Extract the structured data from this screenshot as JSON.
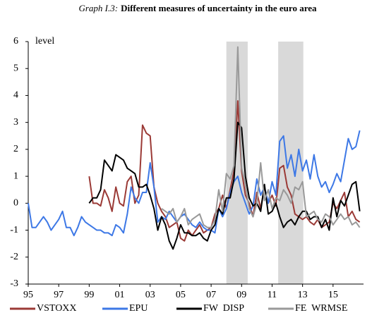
{
  "chart_data": {
    "type": "line",
    "title_label": "Graph I.3:",
    "title": "Different measures of uncertainty in the euro area",
    "y_label": "level",
    "x": [
      1995,
      1995.25,
      1995.5,
      1995.75,
      1996,
      1996.25,
      1996.5,
      1996.75,
      1997,
      1997.25,
      1997.5,
      1997.75,
      1998,
      1998.25,
      1998.5,
      1998.75,
      1999,
      1999.25,
      1999.5,
      1999.75,
      2000,
      2000.25,
      2000.5,
      2000.75,
      2001,
      2001.25,
      2001.5,
      2001.75,
      2002,
      2002.25,
      2002.5,
      2002.75,
      2003,
      2003.25,
      2003.5,
      2003.75,
      2004,
      2004.25,
      2004.5,
      2004.75,
      2005,
      2005.25,
      2005.5,
      2005.75,
      2006,
      2006.25,
      2006.5,
      2006.75,
      2007,
      2007.25,
      2007.5,
      2007.75,
      2008,
      2008.25,
      2008.5,
      2008.75,
      2009,
      2009.25,
      2009.5,
      2009.75,
      2010,
      2010.25,
      2010.5,
      2010.75,
      2011,
      2011.25,
      2011.5,
      2011.75,
      2012,
      2012.25,
      2012.5,
      2012.75,
      2013,
      2013.25,
      2013.5,
      2013.75,
      2014,
      2014.25,
      2014.5,
      2014.75,
      2015,
      2015.25,
      2015.5,
      2015.75,
      2016,
      2016.25,
      2016.5,
      2016.75
    ],
    "series": [
      {
        "name": "VSTOXX",
        "color": "#9b3a36",
        "values": [
          null,
          null,
          null,
          null,
          null,
          null,
          null,
          null,
          null,
          null,
          null,
          null,
          null,
          null,
          null,
          null,
          1.0,
          0.0,
          0.0,
          -0.1,
          0.5,
          0.2,
          -0.3,
          0.6,
          0.0,
          -0.1,
          0.8,
          1.0,
          0.0,
          0.3,
          2.9,
          2.6,
          2.5,
          0.6,
          0.0,
          -0.3,
          -0.5,
          -0.9,
          -0.8,
          -0.7,
          -1.3,
          -1.4,
          -1.0,
          -1.2,
          -1.0,
          -0.8,
          -1.1,
          -1.0,
          -0.9,
          -0.4,
          -0.2,
          0.3,
          -0.2,
          0.5,
          1.2,
          3.8,
          1.2,
          0.3,
          0.0,
          -0.5,
          0.4,
          -0.2,
          0.6,
          0.0,
          0.3,
          -0.1,
          1.3,
          1.4,
          0.6,
          0.3,
          -0.4,
          -0.5,
          -0.6,
          -0.5,
          -0.7,
          -0.8,
          -0.6,
          -0.9,
          -0.8,
          -0.7,
          0.0,
          -0.2,
          0.1,
          0.4,
          -0.5,
          -0.3,
          -0.6,
          -0.7
        ]
      },
      {
        "name": "EPU",
        "color": "#3d78e6",
        "values": [
          0,
          -0.9,
          -0.9,
          -0.7,
          -0.5,
          -0.7,
          -1.0,
          -0.8,
          -0.6,
          -0.3,
          -0.9,
          -0.9,
          -1.2,
          -0.9,
          -0.5,
          -0.7,
          -0.8,
          -0.9,
          -1.0,
          -1.0,
          -1.1,
          -1.1,
          -1.2,
          -0.8,
          -0.9,
          -1.1,
          -0.4,
          0.6,
          0.2,
          0.0,
          0.4,
          0.4,
          1.5,
          0.6,
          -0.7,
          -0.5,
          -0.6,
          -0.3,
          -0.5,
          -0.7,
          -0.5,
          -0.4,
          -0.6,
          -0.8,
          -0.9,
          -0.7,
          -0.9,
          -1.0,
          -1.0,
          -1.1,
          -0.2,
          -0.5,
          -0.2,
          0.4,
          0.8,
          1.0,
          0.4,
          0.0,
          -0.4,
          -0.1,
          0.9,
          0.3,
          0.6,
          0.0,
          0.8,
          0.3,
          2.3,
          2.5,
          1.3,
          1.8,
          1.0,
          2.0,
          1.2,
          1.6,
          0.9,
          1.8,
          1.0,
          0.6,
          0.8,
          0.4,
          0.7,
          1.1,
          0.8,
          1.6,
          2.4,
          2.0,
          2.1,
          2.7
        ]
      },
      {
        "name": "FW  DISP",
        "color": "#000000",
        "values": [
          null,
          null,
          null,
          null,
          null,
          null,
          null,
          null,
          null,
          null,
          null,
          null,
          null,
          null,
          null,
          null,
          0.0,
          0.2,
          0.2,
          0.5,
          1.6,
          1.4,
          1.2,
          1.8,
          1.7,
          1.6,
          1.3,
          1.2,
          1.1,
          0.6,
          0.6,
          0.7,
          0.3,
          -0.2,
          -1.0,
          -0.5,
          -0.8,
          -1.4,
          -1.7,
          -1.3,
          -0.8,
          -1.1,
          -1.1,
          -1.2,
          -1.2,
          -1.1,
          -1.3,
          -1.4,
          -1.0,
          -0.8,
          -0.2,
          -0.4,
          0.2,
          0.2,
          0.9,
          3.0,
          2.8,
          1.0,
          0.2,
          -0.1,
          0.0,
          -0.3,
          0.7,
          -0.4,
          -0.3,
          0.0,
          -0.5,
          -0.9,
          -0.7,
          -0.6,
          -0.8,
          -0.5,
          -0.3,
          -0.3,
          -0.6,
          -0.5,
          -0.5,
          -0.9,
          -0.6,
          -1.0,
          0.2,
          -0.5,
          0.1,
          -0.1,
          0.3,
          0.7,
          0.8,
          -0.3
        ]
      },
      {
        "name": "FE  WRMSE",
        "color": "#999999",
        "values": [
          null,
          null,
          null,
          null,
          null,
          null,
          null,
          null,
          null,
          null,
          null,
          null,
          null,
          null,
          null,
          null,
          null,
          null,
          null,
          null,
          null,
          null,
          null,
          null,
          null,
          null,
          null,
          null,
          null,
          null,
          null,
          null,
          null,
          null,
          null,
          -0.2,
          -0.3,
          -0.4,
          -0.2,
          -0.7,
          -0.5,
          -0.2,
          -0.8,
          -0.6,
          -0.5,
          -0.4,
          -0.8,
          -0.9,
          -0.9,
          -0.6,
          0.5,
          -0.3,
          1.1,
          0.9,
          1.4,
          5.8,
          1.3,
          0.7,
          -0.2,
          -0.5,
          0.0,
          1.5,
          0.1,
          0.5,
          -0.2,
          0.2,
          0.1,
          0.5,
          0.3,
          0.0,
          0.6,
          0.5,
          0.8,
          -0.5,
          -0.4,
          -0.3,
          -0.6,
          -0.7,
          -0.4,
          -0.5,
          -0.8,
          -0.6,
          -0.4,
          -0.6,
          -0.5,
          -0.8,
          -0.7,
          -0.9
        ]
      }
    ],
    "shaded": [
      {
        "start": 2008,
        "end": 2009.4
      },
      {
        "start": 2011.4,
        "end": 2013.05
      }
    ],
    "shade_color": "#d9d9d9",
    "xlim": [
      1995,
      2017
    ],
    "xticks": [
      {
        "value": 1995,
        "label": "95"
      },
      {
        "value": 1997,
        "label": "97"
      },
      {
        "value": 1999,
        "label": "99"
      },
      {
        "value": 2001,
        "label": "01"
      },
      {
        "value": 2003,
        "label": "03"
      },
      {
        "value": 2005,
        "label": "05"
      },
      {
        "value": 2007,
        "label": "07"
      },
      {
        "value": 2009,
        "label": "09"
      },
      {
        "value": 2011,
        "label": "11"
      },
      {
        "value": 2013,
        "label": "13"
      },
      {
        "value": 2015,
        "label": "15"
      }
    ],
    "ylim": [
      -3,
      6
    ],
    "yticks": [
      -3,
      -2,
      -1,
      0,
      1,
      2,
      3,
      4,
      5,
      6
    ]
  }
}
